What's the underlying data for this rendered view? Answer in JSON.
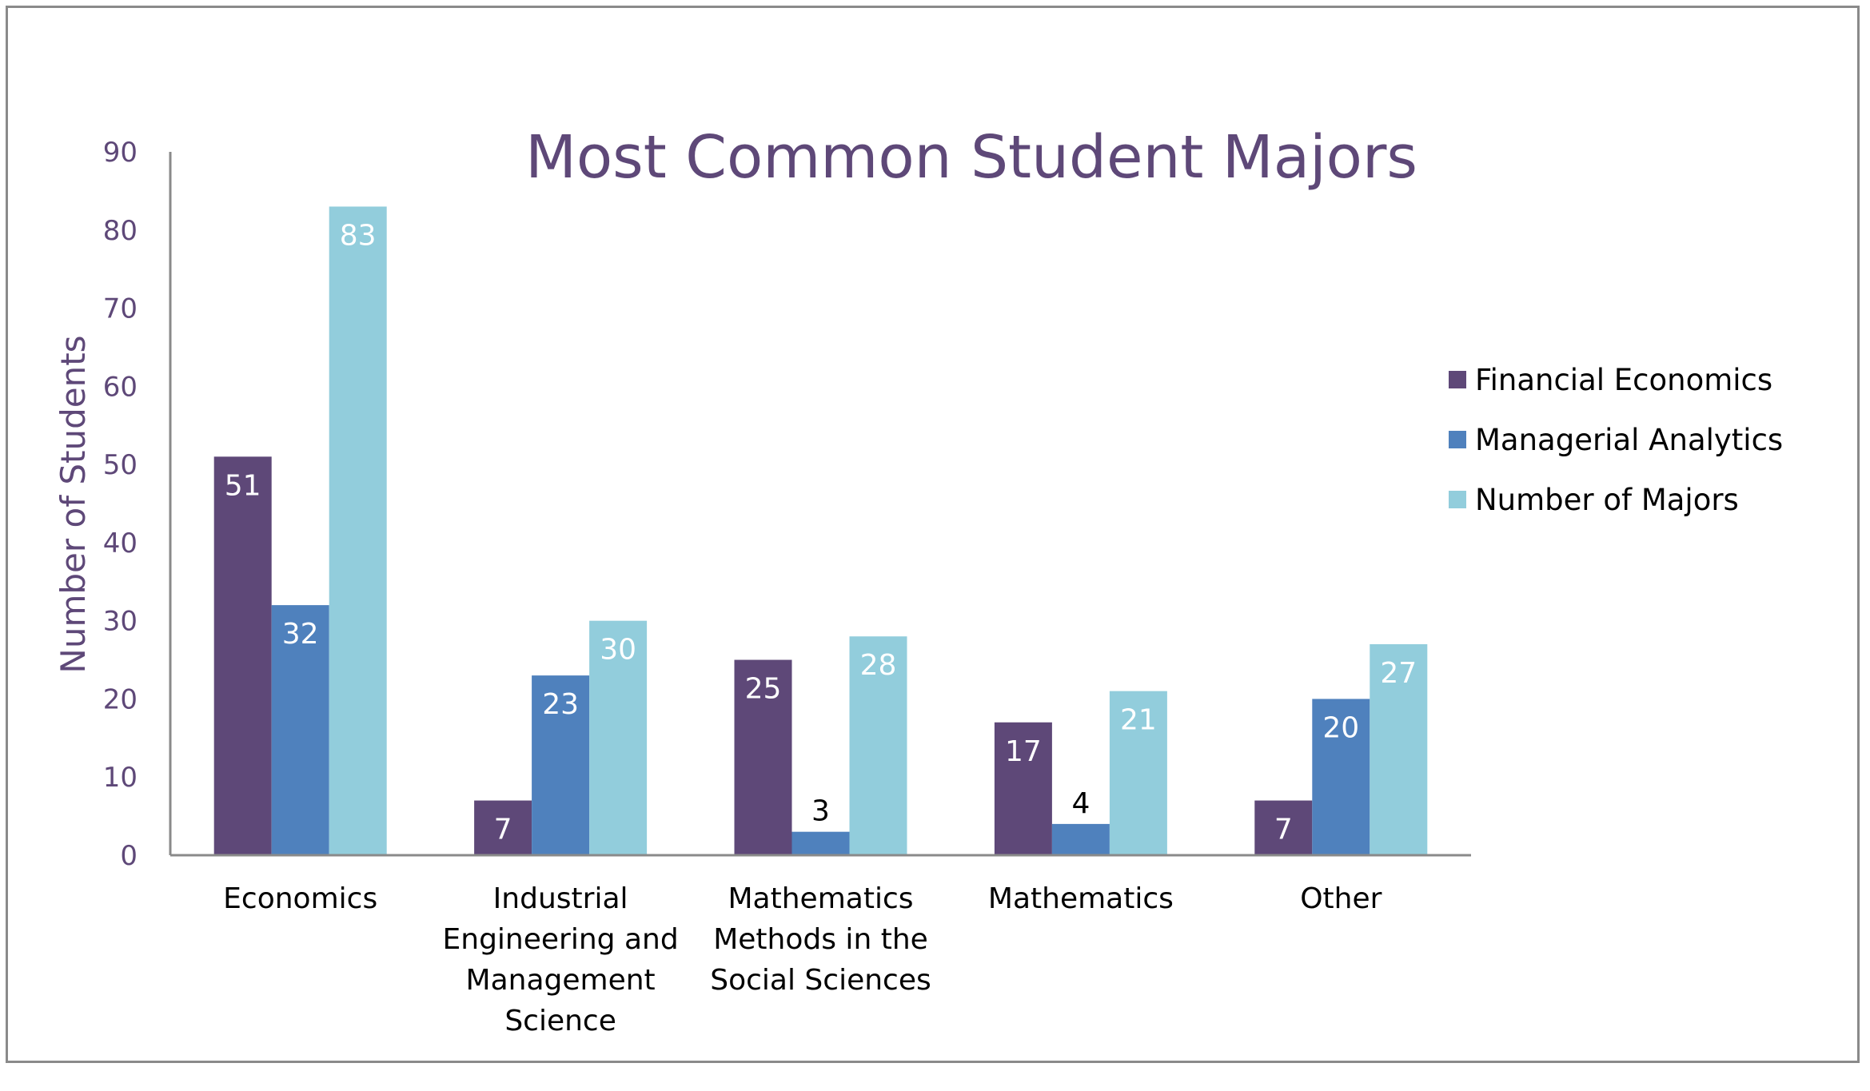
{
  "chart_data": {
    "type": "bar",
    "title": "Most Common Student Majors",
    "xlabel": "",
    "ylabel": "Number of Students",
    "ylim": [
      0,
      90
    ],
    "yticks": [
      0,
      10,
      20,
      30,
      40,
      50,
      60,
      70,
      80,
      90
    ],
    "grid": false,
    "legend_position": "right",
    "categories": [
      "Economics",
      "Industrial Engineering and Management Science",
      "Mathematics Methods in the Social Sciences",
      "Mathematics",
      "Other"
    ],
    "category_label_lines": [
      [
        "Economics"
      ],
      [
        "Industrial",
        "Engineering and",
        "Management",
        "Science"
      ],
      [
        "Mathematics",
        "Methods in the",
        "Social Sciences"
      ],
      [
        "Mathematics"
      ],
      [
        "Other"
      ]
    ],
    "series": [
      {
        "name": "Financial Economics",
        "values": [
          51,
          7,
          25,
          17,
          7
        ],
        "color": "#5e4878"
      },
      {
        "name": "Managerial Analytics",
        "values": [
          32,
          23,
          3,
          4,
          20
        ],
        "color": "#4f81bd"
      },
      {
        "name": "Number of Majors",
        "values": [
          83,
          30,
          28,
          21,
          27
        ],
        "color": "#92cddc"
      }
    ],
    "colors": {
      "title": "#5e4878",
      "axis_text": "#5e4878",
      "axis_line": "#8a8a8a",
      "label_inside": "#ffffff",
      "label_outside": "#000000"
    }
  }
}
